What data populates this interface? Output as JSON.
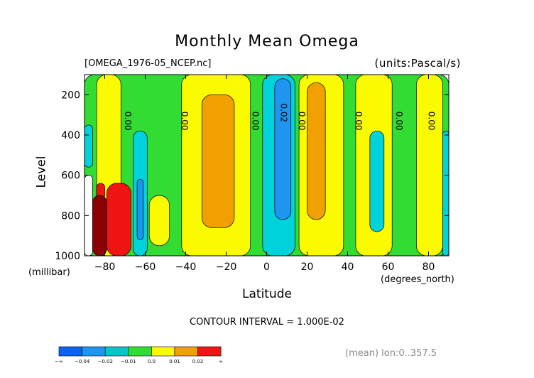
{
  "header": {
    "title": "Monthly Mean Omega",
    "file": "[OMEGA_1976-05_NCEP.nc]",
    "units": "(units:Pascal/s)"
  },
  "footer": {
    "contour_interval": "CONTOUR INTERVAL = 1.000E-02",
    "mean_note": "(mean) lon:0..357.5"
  },
  "chart_data": {
    "type": "heatmap",
    "title": "Monthly Mean Omega",
    "xlabel": "Latitude",
    "xunit": "(degrees_north)",
    "ylabel": "Level",
    "yunit": "(millibar)",
    "xlim": [
      -90,
      90
    ],
    "ylim": [
      1000,
      100
    ],
    "xticks": [
      -80,
      -60,
      -40,
      -20,
      0,
      20,
      40,
      60,
      80
    ],
    "yticks": [
      200,
      400,
      600,
      800,
      1000
    ],
    "contour_labels": [
      {
        "text": "0.00",
        "lat": -70,
        "lev": 330
      },
      {
        "text": "0.00",
        "lat": -42,
        "lev": 330
      },
      {
        "text": "0.00",
        "lat": -7,
        "lev": 330
      },
      {
        "text": "0.02",
        "lat": 7,
        "lev": 290
      },
      {
        "text": "0.00",
        "lat": 16,
        "lev": 330
      },
      {
        "text": "0.00",
        "lat": 44,
        "lev": 330
      },
      {
        "text": "0.00",
        "lat": 64,
        "lev": 330
      },
      {
        "text": "0.00",
        "lat": 80,
        "lev": 330
      }
    ],
    "legend": {
      "levels": [
        "-∞",
        "-0.04",
        "-0.02",
        "-0.01",
        "0.0",
        "0.01",
        "0.02",
        "∞"
      ],
      "colors": [
        "#0a64f0",
        "#1e96f0",
        "#00c8c8",
        "#32dc32",
        "#fafa00",
        "#f0a000",
        "#f01414"
      ]
    },
    "regions": [
      {
        "color": "#32dc32",
        "lat": [
          -90,
          90
        ],
        "lev": [
          100,
          1000
        ]
      },
      {
        "color": "#00d2dc",
        "lat": [
          -90,
          -86
        ],
        "lev": [
          350,
          560
        ]
      },
      {
        "color": "#fafa00",
        "lat": [
          -84,
          -72
        ],
        "lev": [
          100,
          1000
        ]
      },
      {
        "color": "#00d2dc",
        "lat": [
          -66,
          -59
        ],
        "lev": [
          380,
          1000
        ]
      },
      {
        "color": "#1e96f0",
        "lat": [
          -64,
          -61
        ],
        "lev": [
          620,
          920
        ]
      },
      {
        "color": "#fafa00",
        "lat": [
          -58,
          -48
        ],
        "lev": [
          700,
          950
        ]
      },
      {
        "color": "#fafa00",
        "lat": [
          -42,
          -8
        ],
        "lev": [
          100,
          1000
        ]
      },
      {
        "color": "#f0a000",
        "lat": [
          -32,
          -16
        ],
        "lev": [
          200,
          860
        ]
      },
      {
        "color": "#00d2dc",
        "lat": [
          -2,
          14
        ],
        "lev": [
          100,
          1000
        ]
      },
      {
        "color": "#1e96f0",
        "lat": [
          4,
          12
        ],
        "lev": [
          120,
          820
        ]
      },
      {
        "color": "#fafa00",
        "lat": [
          16,
          38
        ],
        "lev": [
          100,
          1000
        ]
      },
      {
        "color": "#f0a000",
        "lat": [
          20,
          29
        ],
        "lev": [
          140,
          820
        ]
      },
      {
        "color": "#fafa00",
        "lat": [
          44,
          62
        ],
        "lev": [
          100,
          1000
        ]
      },
      {
        "color": "#00d2dc",
        "lat": [
          51,
          58
        ],
        "lev": [
          380,
          880
        ]
      },
      {
        "color": "#fafa00",
        "lat": [
          74,
          87
        ],
        "lev": [
          100,
          1000
        ]
      },
      {
        "color": "#00d2dc",
        "lat": [
          87,
          90
        ],
        "lev": [
          380,
          1000
        ]
      },
      {
        "color": "#f01414",
        "lat": [
          -79,
          -67
        ],
        "lev": [
          640,
          1000
        ]
      },
      {
        "color": "#f01414",
        "lat": [
          -84,
          -80
        ],
        "lev": [
          640,
          720
        ]
      },
      {
        "color": "#8b0000",
        "lat": [
          -86,
          -79
        ],
        "lev": [
          700,
          1000
        ]
      },
      {
        "color": "#ffffff",
        "lat": [
          -90,
          -86
        ],
        "lev": [
          600,
          1000
        ]
      }
    ]
  }
}
